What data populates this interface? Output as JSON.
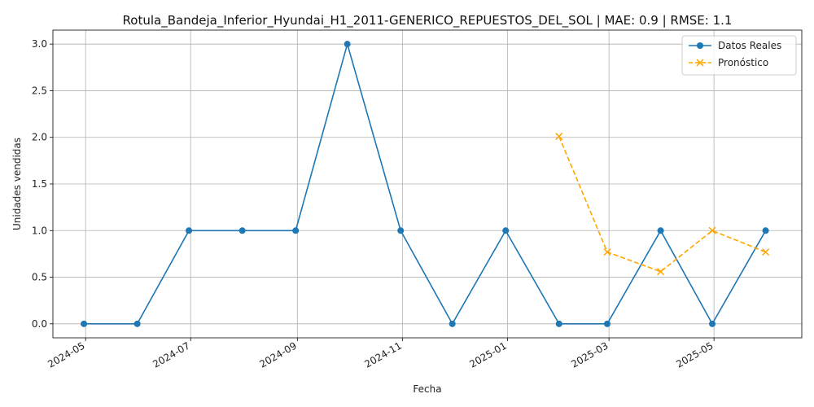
{
  "chart_data": {
    "type": "line",
    "title": "Rotula_Bandeja_Inferior_Hyundai_H1_2011-GENERICO_REPUESTOS_DEL_SOL | MAE: 0.9 | RMSE: 1.1",
    "xlabel": "Fecha",
    "ylabel": "Unidades vendidas",
    "ylim": [
      -0.15,
      3.15
    ],
    "xlim": [
      "2024-04-12",
      "2025-06-21"
    ],
    "grid": true,
    "legend_position": "top-right",
    "x_tick_labels": [
      "2024-05",
      "2024-07",
      "2024-09",
      "2024-11",
      "2025-01",
      "2025-03",
      "2025-05"
    ],
    "x_tick_dates": [
      "2024-05-01",
      "2024-07-01",
      "2024-09-01",
      "2024-11-01",
      "2025-01-01",
      "2025-03-01",
      "2025-05-01"
    ],
    "y_ticks": [
      0.0,
      0.5,
      1.0,
      1.5,
      2.0,
      2.5,
      3.0
    ],
    "y_tick_labels": [
      "0.0",
      "0.5",
      "1.0",
      "1.5",
      "2.0",
      "2.5",
      "3.0"
    ],
    "series": [
      {
        "name": "Datos Reales",
        "color": "#1f77b4",
        "style": "solid",
        "marker": "circle",
        "x": [
          "2024-04-30",
          "2024-05-31",
          "2024-06-30",
          "2024-07-31",
          "2024-08-31",
          "2024-09-30",
          "2024-10-31",
          "2024-11-30",
          "2024-12-31",
          "2025-01-31",
          "2025-02-28",
          "2025-03-31",
          "2025-04-30",
          "2025-05-31"
        ],
        "values": [
          0,
          0,
          1,
          1,
          1,
          3,
          1,
          0,
          1,
          0,
          0,
          1,
          0,
          1
        ]
      },
      {
        "name": "Pronóstico",
        "color": "#ffa500",
        "style": "dashed",
        "marker": "x",
        "x": [
          "2025-01-31",
          "2025-02-28",
          "2025-03-31",
          "2025-04-30",
          "2025-05-31"
        ],
        "values": [
          2.01,
          0.77,
          0.56,
          1.0,
          0.77
        ]
      }
    ]
  }
}
